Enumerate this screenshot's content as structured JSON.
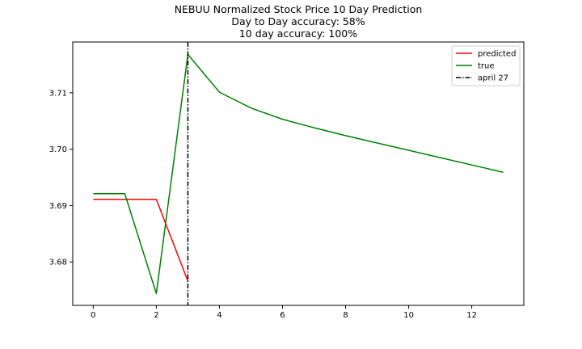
{
  "chart_data": {
    "type": "line",
    "title": "NEBUU Normalized Stock Price 10 Day Prediction",
    "subtitle": [
      "Day to Day accuracy: 58%",
      "10 day accuracy: 100%"
    ],
    "xlabel": "",
    "ylabel": "",
    "xlim": [
      -0.65,
      13.65
    ],
    "ylim": [
      3.6723,
      3.719
    ],
    "xticks": [
      0,
      2,
      4,
      6,
      8,
      10,
      12
    ],
    "yticks": [
      3.68,
      3.69,
      3.7,
      3.71
    ],
    "ytick_labels": [
      "3.68",
      "3.69",
      "3.70",
      "3.71"
    ],
    "grid": false,
    "legend_position": "top-right",
    "series": [
      {
        "name": "predicted",
        "color": "#ff0000",
        "style": "solid",
        "x": [
          0,
          1,
          2,
          3
        ],
        "y": [
          3.6911,
          3.6911,
          3.6911,
          3.6766
        ]
      },
      {
        "name": "true",
        "color": "#008000",
        "style": "solid",
        "x": [
          0,
          1,
          2,
          3,
          4,
          5,
          6,
          7,
          8,
          9,
          10,
          11,
          12,
          13
        ],
        "y": [
          3.6921,
          3.6921,
          3.6744,
          3.7168,
          3.7101,
          3.7073,
          3.7053,
          3.7038,
          3.7024,
          3.7011,
          3.6998,
          3.6985,
          3.6972,
          3.6959
        ]
      }
    ],
    "vlines": [
      {
        "name": "april 27",
        "x": 3,
        "color": "#000000",
        "style": "dashdot"
      }
    ]
  }
}
